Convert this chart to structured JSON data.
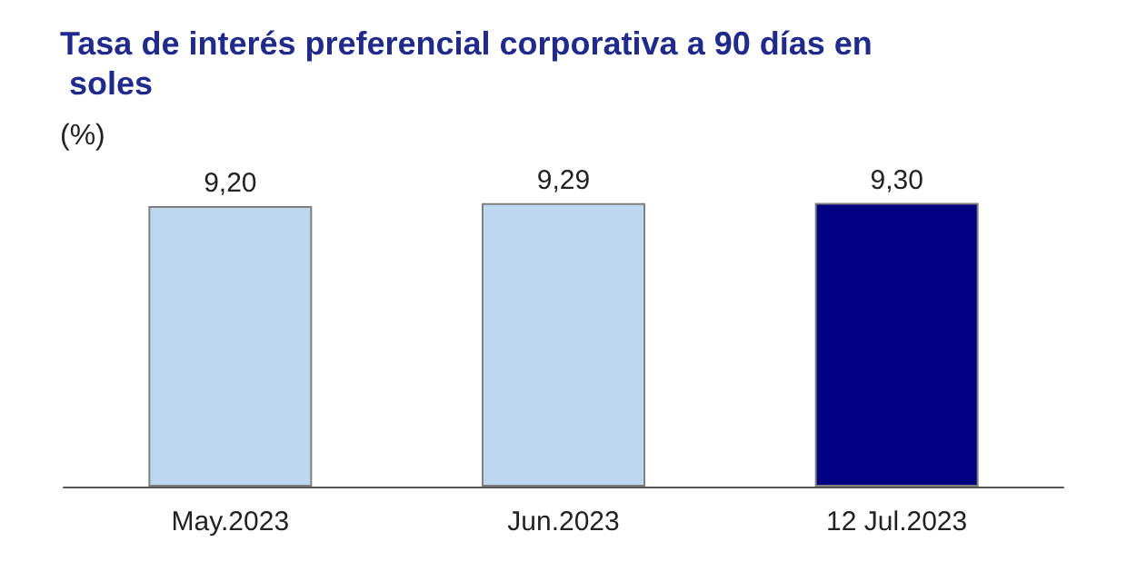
{
  "chart_data": {
    "type": "bar",
    "title": "Tasa de interés preferencial corporativa a 90 días en soles",
    "ylabel": "(%)",
    "categories": [
      "May.2023",
      "Jun.2023",
      "12 Jul.2023"
    ],
    "values": [
      9.2,
      9.29,
      9.3
    ],
    "colors": [
      "#bdd7ee",
      "#bdd7ee",
      "#000080"
    ],
    "value_labels": [
      "9,20",
      "9,29",
      "9,30"
    ],
    "tick_labels": "x"
  }
}
